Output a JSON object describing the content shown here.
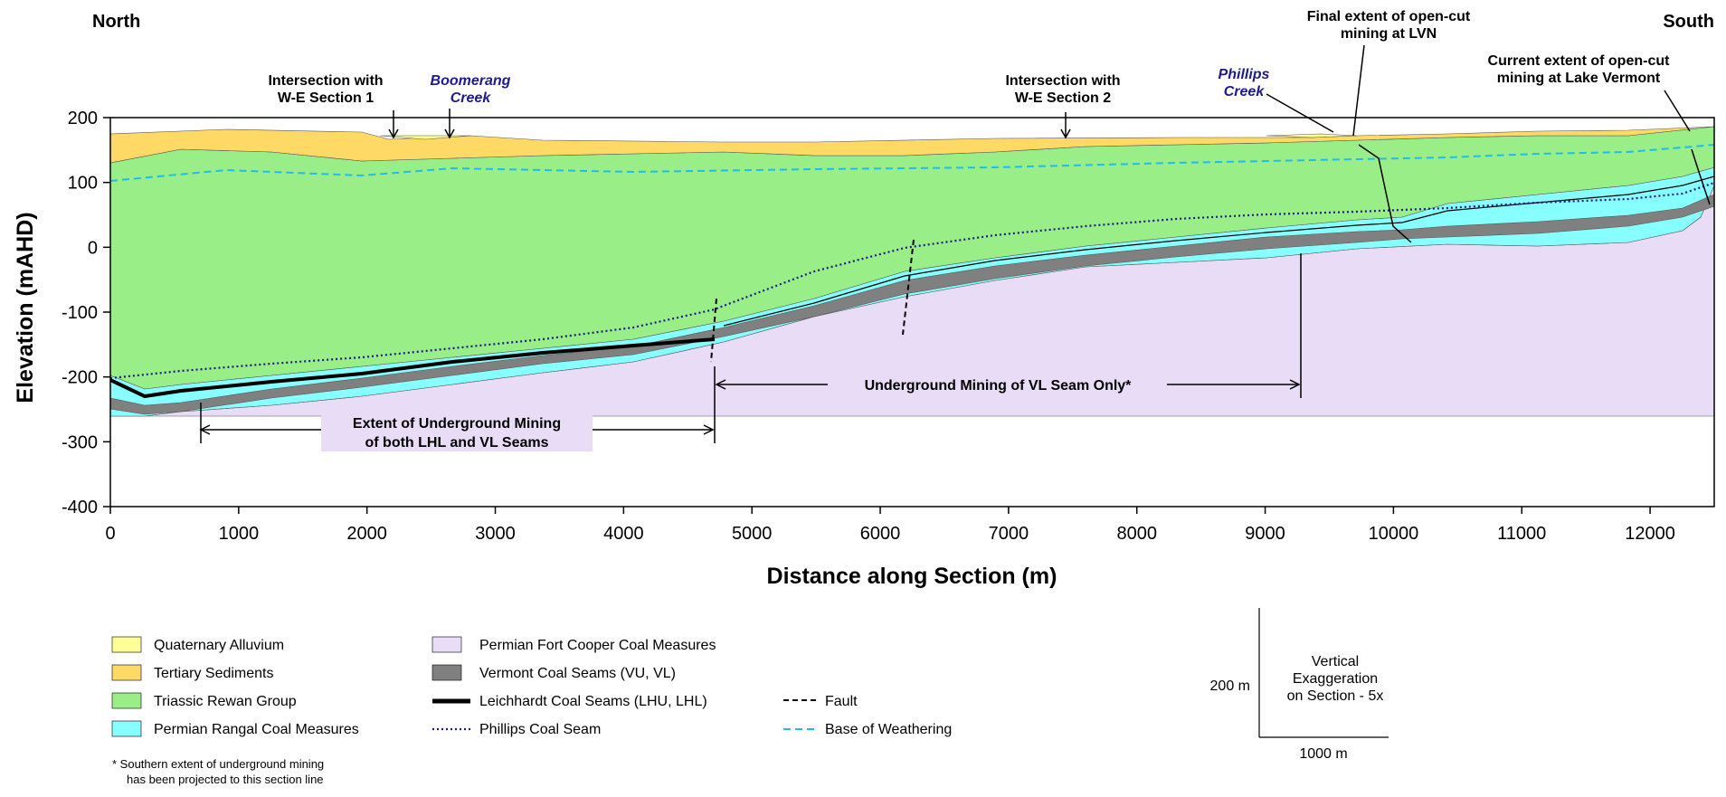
{
  "header": {
    "north": "North",
    "south": "South"
  },
  "axes": {
    "xlabel": "Distance along Section (m)",
    "ylabel": "Elevation (mAHD)",
    "xlim": [
      0,
      12500
    ],
    "ylim": [
      -400,
      200
    ],
    "xticks": [
      "0",
      "1000",
      "2000",
      "3000",
      "4000",
      "5000",
      "6000",
      "7000",
      "8000",
      "9000",
      "10000",
      "11000",
      "12000"
    ],
    "yticks": [
      "200",
      "100",
      "0",
      "-100",
      "-200",
      "-300",
      "-400"
    ]
  },
  "annotations": {
    "ws1": [
      "Intersection with",
      "W-E Section 1"
    ],
    "boomerang": [
      "Boomerang",
      "Creek"
    ],
    "ws2": [
      "Intersection with",
      "W-E Section 2"
    ],
    "phillips": [
      "Phillips",
      "Creek"
    ],
    "lvn": [
      "Final extent of open-cut",
      "mining at LVN"
    ],
    "lakev": [
      "Current extent of open-cut",
      "mining at Lake Vermont"
    ],
    "ug_both": [
      "Extent of Underground Mining",
      "of both LHL and VL Seams"
    ],
    "ug_vl": "Underground Mining of VL Seam Only*"
  },
  "legend": {
    "quaternary": "Quaternary Alluvium",
    "tertiary": "Tertiary Sediments",
    "rewan": "Triassic Rewan Group",
    "rangal": "Permian Rangal Coal Measures",
    "fortcooper": "Permian Fort Cooper Coal Measures",
    "vermont": "Vermont Coal Seams (VU, VL)",
    "leichhardt": "Leichhardt Coal Seams (LHU, LHL)",
    "phillips_seam": "Phillips Coal Seam",
    "fault": "Fault",
    "weathering": "Base of Weathering"
  },
  "footnote": [
    "* Southern extent of underground mining",
    "has been projected to this section line"
  ],
  "scale": {
    "vertical": "200 m",
    "horizontal": "1000 m",
    "exaggeration": [
      "Vertical",
      "Exaggeration",
      "on Section - 5x"
    ]
  },
  "colors": {
    "quaternary": "#ffff99",
    "tertiary": "#ffd966",
    "rewan": "#99ee88",
    "rangal": "#88ffff",
    "fortcooper": "#e8dcf6",
    "vermont": "#808080",
    "creek_text": "#1c1c8c",
    "weathering": "#22bbee",
    "phillips_line": "#1a1a8c"
  }
}
